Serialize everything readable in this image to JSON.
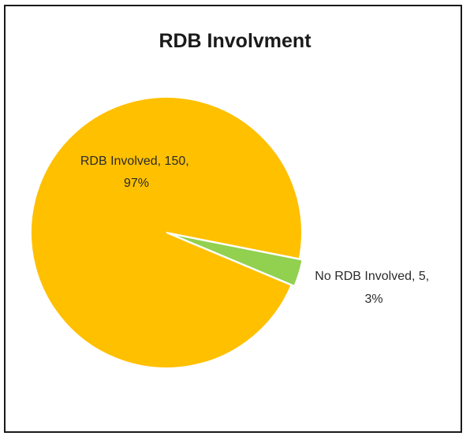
{
  "chart_data": {
    "type": "pie",
    "title": "RDB Involvment",
    "categories": [
      "RDB Involved",
      "No RDB Involved"
    ],
    "values": [
      150,
      5
    ],
    "percentages": [
      "97%",
      "3%"
    ],
    "colors": [
      "#FFC000",
      "#92D050"
    ],
    "data_labels": [
      {
        "line1": "RDB Involved, 150,",
        "line2": "97%"
      },
      {
        "line1": "No RDB Involved, 5,",
        "line2": "3%"
      }
    ]
  }
}
